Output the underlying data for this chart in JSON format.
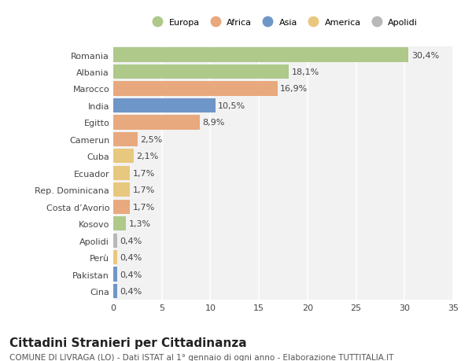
{
  "title": "Cittadini Stranieri per Cittadinanza",
  "subtitle": "COMUNE DI LIVRAGA (LO) - Dati ISTAT al 1° gennaio di ogni anno - Elaborazione TUTTITALIA.IT",
  "categories": [
    "Romania",
    "Albania",
    "Marocco",
    "India",
    "Egitto",
    "Camerun",
    "Cuba",
    "Ecuador",
    "Rep. Dominicana",
    "Costa d’Avorio",
    "Kosovo",
    "Apolidi",
    "Perù",
    "Pakistan",
    "Cina"
  ],
  "values": [
    30.4,
    18.1,
    16.9,
    10.5,
    8.9,
    2.5,
    2.1,
    1.7,
    1.7,
    1.7,
    1.3,
    0.4,
    0.4,
    0.4,
    0.4
  ],
  "labels": [
    "30,4%",
    "18,1%",
    "16,9%",
    "10,5%",
    "8,9%",
    "2,5%",
    "2,1%",
    "1,7%",
    "1,7%",
    "1,7%",
    "1,3%",
    "0,4%",
    "0,4%",
    "0,4%",
    "0,4%"
  ],
  "continent": [
    "Europa",
    "Europa",
    "Africa",
    "Asia",
    "Africa",
    "Africa",
    "America",
    "America",
    "America",
    "Africa",
    "Europa",
    "Apolidi",
    "America",
    "Asia",
    "Asia"
  ],
  "colors": {
    "Europa": "#aec98a",
    "Africa": "#e8a97e",
    "Asia": "#6f96c8",
    "America": "#e8c87e",
    "Apolidi": "#b8b8b8"
  },
  "legend_order": [
    "Europa",
    "Africa",
    "Asia",
    "America",
    "Apolidi"
  ],
  "xlim": [
    0,
    35
  ],
  "xticks": [
    0,
    5,
    10,
    15,
    20,
    25,
    30,
    35
  ],
  "bg_color": "#ffffff",
  "plot_bg_color": "#f2f2f2",
  "grid_color": "#ffffff",
  "bar_height": 0.85,
  "label_fontsize": 8,
  "tick_fontsize": 8,
  "title_fontsize": 11,
  "subtitle_fontsize": 7.5
}
